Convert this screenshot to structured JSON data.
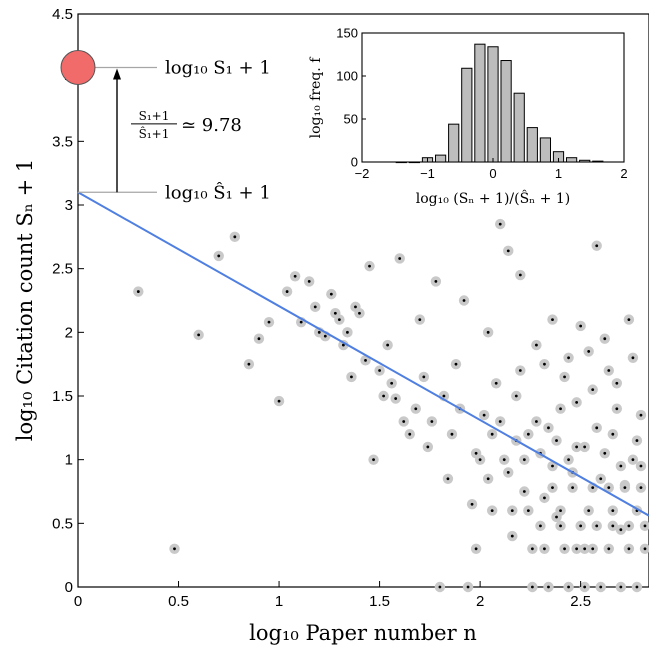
{
  "chart_data": [
    {
      "type": "scatter",
      "xlabel": "log₁₀ Paper number n",
      "ylabel": "log₁₀ Citation count Sₙ + 1",
      "xlim": [
        0,
        2.84
      ],
      "ylim": [
        0,
        4.5
      ],
      "x_ticks": [
        "0",
        "0.5",
        "1",
        "1.5",
        "2",
        "2.5"
      ],
      "y_ticks": [
        "0",
        "0.5",
        "1",
        "1.5",
        "2",
        "2.5",
        "3",
        "3.5",
        "4",
        "4.5"
      ],
      "grid": false,
      "colors": {
        "fit_line": "#4f7fe0",
        "marker_halo": "#c9c9c9",
        "marker_dot": "#000000",
        "first_paper": "#f26b6b"
      },
      "fit_line": {
        "x": [
          0,
          2.84
        ],
        "y": [
          3.1,
          0.56
        ]
      },
      "first_paper": {
        "x": 0,
        "y": 4.08
      },
      "annotations": {
        "top_label": "log₁₀ S₁ + 1",
        "bottom_label": "log₁₀ Ŝ₁ + 1",
        "ratio_numerator": "S₁+1",
        "ratio_denominator": "Ŝ₁+1",
        "ratio_value": "≃ 9.78",
        "top_y": 4.08,
        "bottom_y": 3.1
      },
      "points": [
        [
          0.3,
          2.32
        ],
        [
          0.48,
          0.3
        ],
        [
          0.6,
          1.98
        ],
        [
          0.7,
          2.6
        ],
        [
          0.78,
          2.75
        ],
        [
          0.85,
          1.75
        ],
        [
          0.9,
          1.95
        ],
        [
          0.95,
          2.08
        ],
        [
          1.0,
          1.46
        ],
        [
          1.04,
          2.32
        ],
        [
          1.08,
          2.44
        ],
        [
          1.11,
          2.08
        ],
        [
          1.15,
          2.4
        ],
        [
          1.18,
          2.2
        ],
        [
          1.2,
          2.0
        ],
        [
          1.23,
          1.97
        ],
        [
          1.26,
          2.3
        ],
        [
          1.28,
          2.15
        ],
        [
          1.3,
          2.1
        ],
        [
          1.32,
          1.9
        ],
        [
          1.34,
          2.0
        ],
        [
          1.36,
          1.65
        ],
        [
          1.38,
          2.2
        ],
        [
          1.4,
          2.15
        ],
        [
          1.43,
          1.78
        ],
        [
          1.45,
          2.52
        ],
        [
          1.47,
          1.0
        ],
        [
          1.5,
          1.7
        ],
        [
          1.52,
          1.5
        ],
        [
          1.54,
          1.9
        ],
        [
          1.56,
          1.6
        ],
        [
          1.58,
          1.48
        ],
        [
          1.6,
          2.58
        ],
        [
          1.62,
          1.3
        ],
        [
          1.65,
          1.2
        ],
        [
          1.68,
          1.4
        ],
        [
          1.7,
          2.1
        ],
        [
          1.72,
          1.65
        ],
        [
          1.74,
          1.1
        ],
        [
          1.76,
          1.3
        ],
        [
          1.78,
          2.4
        ],
        [
          1.8,
          0.0
        ],
        [
          1.82,
          1.5
        ],
        [
          1.84,
          0.85
        ],
        [
          1.86,
          1.2
        ],
        [
          1.88,
          1.75
        ],
        [
          1.9,
          1.4
        ],
        [
          1.92,
          2.25
        ],
        [
          1.94,
          0.0
        ],
        [
          1.96,
          0.65
        ],
        [
          1.98,
          1.05
        ],
        [
          2.0,
          1.0
        ],
        [
          2.02,
          1.35
        ],
        [
          2.04,
          2.0
        ],
        [
          2.06,
          0.6
        ],
        [
          2.08,
          1.6
        ],
        [
          2.1,
          2.85
        ],
        [
          2.12,
          1.0
        ],
        [
          2.14,
          2.64
        ],
        [
          2.16,
          0.4
        ],
        [
          2.18,
          1.5
        ],
        [
          2.2,
          2.45
        ],
        [
          2.22,
          0.75
        ],
        [
          2.24,
          1.2
        ],
        [
          2.26,
          0.3
        ],
        [
          2.28,
          1.9
        ],
        [
          2.3,
          1.05
        ],
        [
          2.32,
          0.7
        ],
        [
          2.34,
          1.25
        ],
        [
          2.36,
          2.1
        ],
        [
          2.38,
          0.55
        ],
        [
          2.4,
          1.4
        ],
        [
          2.42,
          0.3
        ],
        [
          2.44,
          1.8
        ],
        [
          2.46,
          0.9
        ],
        [
          2.48,
          1.1
        ],
        [
          2.5,
          2.05
        ],
        [
          2.52,
          0.3
        ],
        [
          2.54,
          0.6
        ],
        [
          2.56,
          1.55
        ],
        [
          2.58,
          2.68
        ],
        [
          2.6,
          0.85
        ],
        [
          2.62,
          1.95
        ],
        [
          2.64,
          0.3
        ],
        [
          2.66,
          1.2
        ],
        [
          2.68,
          1.6
        ],
        [
          2.7,
          0.45
        ],
        [
          2.72,
          0.8
        ],
        [
          2.74,
          2.1
        ],
        [
          2.76,
          1.0
        ],
        [
          2.78,
          0.6
        ],
        [
          2.8,
          1.35
        ],
        [
          2.82,
          0.3
        ],
        [
          2.26,
          0.0
        ],
        [
          2.34,
          0.0
        ],
        [
          2.44,
          0.0
        ],
        [
          2.52,
          0.0
        ],
        [
          2.6,
          0.0
        ],
        [
          2.7,
          0.0
        ],
        [
          2.78,
          0.0
        ],
        [
          2.3,
          0.48
        ],
        [
          2.4,
          0.48
        ],
        [
          2.5,
          0.48
        ],
        [
          2.58,
          0.48
        ],
        [
          2.66,
          0.48
        ],
        [
          2.74,
          0.48
        ],
        [
          2.82,
          0.48
        ],
        [
          2.36,
          0.78
        ],
        [
          2.46,
          0.78
        ],
        [
          2.56,
          0.78
        ],
        [
          2.64,
          0.78
        ],
        [
          2.72,
          0.78
        ],
        [
          2.8,
          0.78
        ],
        [
          2.28,
          1.3
        ],
        [
          2.38,
          1.15
        ],
        [
          2.48,
          1.45
        ],
        [
          2.58,
          1.25
        ],
        [
          2.68,
          1.4
        ],
        [
          2.78,
          1.15
        ],
        [
          2.2,
          1.7
        ],
        [
          2.32,
          1.75
        ],
        [
          2.42,
          1.65
        ],
        [
          2.54,
          1.85
        ],
        [
          2.64,
          1.7
        ],
        [
          2.76,
          1.8
        ],
        [
          2.18,
          1.15
        ],
        [
          2.22,
          1.0
        ],
        [
          2.36,
          0.95
        ],
        [
          2.44,
          1.0
        ],
        [
          2.52,
          1.1
        ],
        [
          2.62,
          1.05
        ],
        [
          2.7,
          0.95
        ],
        [
          2.8,
          0.95
        ],
        [
          2.04,
          0.85
        ],
        [
          2.1,
          1.3
        ],
        [
          2.14,
          0.9
        ],
        [
          2.06,
          1.2
        ],
        [
          1.98,
          0.3
        ],
        [
          2.16,
          0.6
        ],
        [
          2.24,
          0.6
        ],
        [
          2.32,
          0.3
        ],
        [
          2.4,
          0.6
        ],
        [
          2.48,
          0.3
        ],
        [
          2.56,
          0.3
        ],
        [
          2.66,
          0.6
        ],
        [
          2.74,
          0.3
        ]
      ]
    },
    {
      "type": "bar",
      "xlabel": "log₁₀ (Sₙ + 1)/(Ŝₙ + 1)",
      "ylabel": "log₁₀ freq. f",
      "xlim": [
        -2,
        2
      ],
      "ylim": [
        0,
        150
      ],
      "x_ticks": [
        "−2",
        "−1",
        "0",
        "1",
        "2"
      ],
      "y_ticks": [
        "0",
        "50",
        "100",
        "150"
      ],
      "bar_color": "#bdbdbd",
      "centers": [
        -1.4,
        -1.2,
        -1.0,
        -0.8,
        -0.6,
        -0.4,
        -0.2,
        0.0,
        0.2,
        0.4,
        0.6,
        0.8,
        1.0,
        1.2,
        1.4,
        1.6
      ],
      "values": [
        0,
        0,
        5,
        8,
        44,
        109,
        137,
        134,
        118,
        80,
        40,
        28,
        12,
        5,
        2,
        1
      ]
    }
  ]
}
